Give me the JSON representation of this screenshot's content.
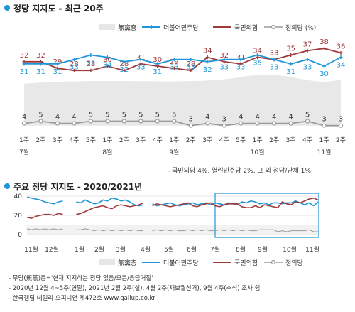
{
  "titles": {
    "main": "정당 지지도 - 최근 20주",
    "second": "주요 정당 지지도 - 2020/2021년"
  },
  "legend": {
    "none": "無黨층",
    "dem": "더불어민주당",
    "ppp": "국민의힘",
    "justice": "정의당 (%)",
    "justice_short": "정의당"
  },
  "colors": {
    "dem": "#1e96d8",
    "ppp": "#a0393b",
    "justice": "#9a9a9a",
    "none": "#e6e6e6",
    "box": "#1e96d8"
  },
  "top_note": "- 국민의당 4%, 열린민주당 2%, 그 외 정당/단체 1%",
  "footnotes": [
    "- 무당(無黨)층='현재 지지하는 정당 없음/모름/응답거절'",
    "- 2020년 12월 4~5주(연말), 2021년 2월 2주(설), 4월 2주(재보궐선거), 9월 4주(추석) 조사 쉼",
    "- 한국갤럽 데일리 오피니언 제472호 www.gallup.co.kr"
  ],
  "chart_data": [
    {
      "type": "line",
      "title": "정당 지지도 - 최근 20주",
      "categories": [
        "1주",
        "2주",
        "3주",
        "4주",
        "5주",
        "1주",
        "2주",
        "3주",
        "4주",
        "1주",
        "2주",
        "3주",
        "4주",
        "5주",
        "1주",
        "2주",
        "3주",
        "4주",
        "1주",
        "2주"
      ],
      "month_labels": [
        {
          "label": "7월",
          "index": 0
        },
        {
          "label": "8월",
          "index": 5
        },
        {
          "label": "9월",
          "index": 9
        },
        {
          "label": "10월",
          "index": 14
        },
        {
          "label": "11월",
          "index": 18
        }
      ],
      "series": [
        {
          "name": "더불어민주당",
          "values": [
            31,
            31,
            31,
            33,
            35,
            34,
            32,
            33,
            31,
            33,
            33,
            32,
            33,
            33,
            35,
            33,
            31,
            33,
            30,
            34
          ]
        },
        {
          "name": "국민의힘",
          "values": [
            32,
            32,
            29,
            28,
            28,
            30,
            28,
            31,
            30,
            29,
            28,
            34,
            32,
            31,
            34,
            33,
            35,
            37,
            38,
            36
          ]
        },
        {
          "name": "정의당",
          "values": [
            4,
            5,
            4,
            4,
            5,
            5,
            5,
            5,
            5,
            5,
            3,
            4,
            3,
            4,
            4,
            4,
            4,
            5,
            3,
            3
          ]
        }
      ],
      "area_series": {
        "name": "無黨층"
      },
      "ylim": [
        0,
        50
      ]
    },
    {
      "type": "line",
      "title": "주요 정당 지지도 - 2020/2021년",
      "month_labels": [
        "11월",
        "12월",
        "1월",
        "2월",
        "3월",
        "4월",
        "5월",
        "6월",
        "7월",
        "8월",
        "9월",
        "10월",
        "11월"
      ],
      "yticks": [
        0,
        20,
        40
      ],
      "ylim": [
        0,
        45
      ],
      "series": [
        {
          "name": "더불어민주당",
          "values": [
            39,
            38,
            37,
            36,
            34,
            33,
            32,
            34,
            35,
            33,
            31,
            34,
            33,
            36,
            34,
            32,
            33,
            36,
            35,
            38,
            37,
            35,
            36,
            34,
            31,
            30,
            31,
            33,
            32,
            30,
            31,
            32,
            33,
            31,
            30,
            31,
            32,
            33,
            31,
            32,
            33,
            31,
            33,
            32,
            31,
            33,
            32,
            31,
            34,
            33,
            35,
            34,
            32,
            33,
            31,
            33,
            33,
            32,
            33,
            33,
            35,
            33,
            31,
            33,
            30,
            34
          ]
        },
        {
          "name": "국민의힘",
          "values": [
            18,
            17,
            19,
            20,
            21,
            21,
            20,
            22,
            21,
            20,
            22,
            21,
            22,
            24,
            26,
            28,
            29,
            30,
            28,
            27,
            30,
            31,
            30,
            29,
            30,
            31,
            33,
            31,
            30,
            32,
            31,
            30,
            29,
            30,
            31,
            32,
            33,
            30,
            29,
            31,
            32,
            33,
            30,
            29,
            31,
            32,
            32,
            32,
            29,
            28,
            28,
            30,
            28,
            31,
            30,
            29,
            28,
            34,
            32,
            31,
            34,
            33,
            35,
            37,
            38,
            36
          ]
        },
        {
          "name": "정의당",
          "values": [
            6,
            5,
            6,
            5,
            6,
            5,
            6,
            5,
            6,
            5,
            6,
            5,
            5,
            6,
            5,
            4,
            5,
            4,
            5,
            4,
            5,
            4,
            5,
            4,
            5,
            4,
            4,
            5,
            4,
            5,
            4,
            5,
            4,
            5,
            4,
            4,
            5,
            4,
            5,
            4,
            5,
            4,
            4,
            5,
            4,
            5,
            4,
            5,
            4,
            5,
            4,
            4,
            5,
            5,
            5,
            5,
            3,
            4,
            3,
            4,
            4,
            4,
            4,
            5,
            3,
            3
          ]
        }
      ],
      "area_series": {
        "name": "無黨층"
      }
    }
  ]
}
